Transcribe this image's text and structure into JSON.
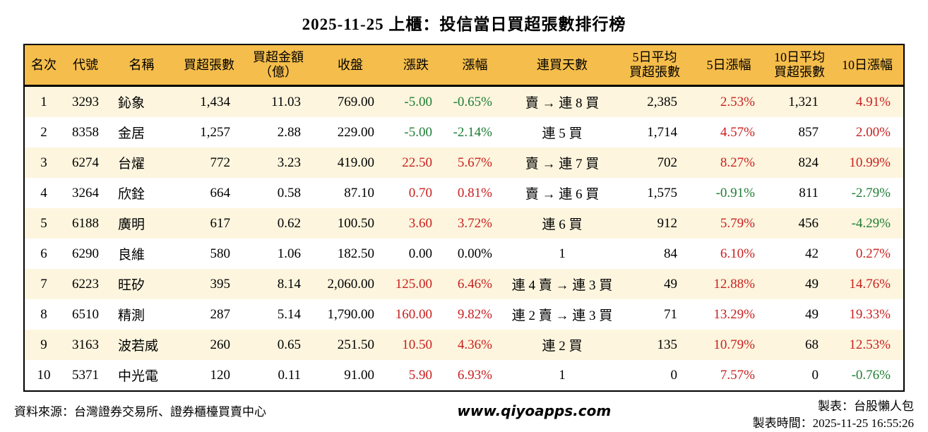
{
  "title": "2025-11-25 上櫃：投信當日買超張數排行榜",
  "chart_data": {
    "type": "table",
    "title": "2025-11-25 上櫃：投信當日買超張數排行榜",
    "columns": [
      {
        "key": "rank",
        "label": "名次",
        "align": "center"
      },
      {
        "key": "code",
        "label": "代號",
        "align": "center"
      },
      {
        "key": "name",
        "label": "名稱",
        "align": "left"
      },
      {
        "key": "net_buy",
        "label": "買超張數",
        "align": "right"
      },
      {
        "key": "amount",
        "label": "買超金額\n（億）",
        "align": "right"
      },
      {
        "key": "close",
        "label": "收盤",
        "align": "right"
      },
      {
        "key": "change",
        "label": "漲跌",
        "align": "right",
        "signed": true
      },
      {
        "key": "change_pct",
        "label": "漲幅",
        "align": "right",
        "signed": true
      },
      {
        "key": "streak",
        "label": "連買天數",
        "align": "center"
      },
      {
        "key": "avg5",
        "label": "5日平均\n買超張數",
        "align": "right"
      },
      {
        "key": "pct5",
        "label": "5日漲幅",
        "align": "right",
        "signed": true
      },
      {
        "key": "avg10",
        "label": "10日平均\n買超張數",
        "align": "right"
      },
      {
        "key": "pct10",
        "label": "10日漲幅",
        "align": "right",
        "signed": true
      }
    ],
    "rows": [
      [
        "1",
        "3293",
        "鈊象",
        "1,434",
        "11.03",
        "769.00",
        "-5.00",
        "-0.65%",
        "賣 → 連 8 買",
        "2,385",
        "2.53%",
        "1,321",
        "4.91%"
      ],
      [
        "2",
        "8358",
        "金居",
        "1,257",
        "2.88",
        "229.00",
        "-5.00",
        "-2.14%",
        "連 5 買",
        "1,714",
        "4.57%",
        "857",
        "2.00%"
      ],
      [
        "3",
        "6274",
        "台燿",
        "772",
        "3.23",
        "419.00",
        "22.50",
        "5.67%",
        "賣 → 連 7 買",
        "702",
        "8.27%",
        "824",
        "10.99%"
      ],
      [
        "4",
        "3264",
        "欣銓",
        "664",
        "0.58",
        "87.10",
        "0.70",
        "0.81%",
        "賣 → 連 6 買",
        "1,575",
        "-0.91%",
        "811",
        "-2.79%"
      ],
      [
        "5",
        "6188",
        "廣明",
        "617",
        "0.62",
        "100.50",
        "3.60",
        "3.72%",
        "連 6 買",
        "912",
        "5.79%",
        "456",
        "-4.29%"
      ],
      [
        "6",
        "6290",
        "良維",
        "580",
        "1.06",
        "182.50",
        "0.00",
        "0.00%",
        "1",
        "84",
        "6.10%",
        "42",
        "0.27%"
      ],
      [
        "7",
        "6223",
        "旺矽",
        "395",
        "8.14",
        "2,060.00",
        "125.00",
        "6.46%",
        "連 4 賣 → 連 3 買",
        "49",
        "12.88%",
        "49",
        "14.76%"
      ],
      [
        "8",
        "6510",
        "精測",
        "287",
        "5.14",
        "1,790.00",
        "160.00",
        "9.82%",
        "連 2 賣 → 連 3 買",
        "71",
        "13.29%",
        "49",
        "19.33%"
      ],
      [
        "9",
        "3163",
        "波若威",
        "260",
        "0.65",
        "251.50",
        "10.50",
        "4.36%",
        "連 2 買",
        "135",
        "10.79%",
        "68",
        "12.53%"
      ],
      [
        "10",
        "5371",
        "中光電",
        "120",
        "0.11",
        "91.00",
        "5.90",
        "6.93%",
        "1",
        "0",
        "7.57%",
        "0",
        "-0.76%"
      ]
    ]
  },
  "footer": {
    "source": "資料來源：台灣證券交易所、證券櫃檯買賣中心",
    "website": "www.qiyoapps.com",
    "maker": "製表：台股懶人包",
    "made_at": "製表時間：2025-11-25 16:55:26"
  },
  "colors": {
    "up": "#c9201f",
    "down": "#1e7d35",
    "header_bg": "#f5bd4b",
    "row_alt_bg": "#fdf5de",
    "border": "#000000"
  }
}
